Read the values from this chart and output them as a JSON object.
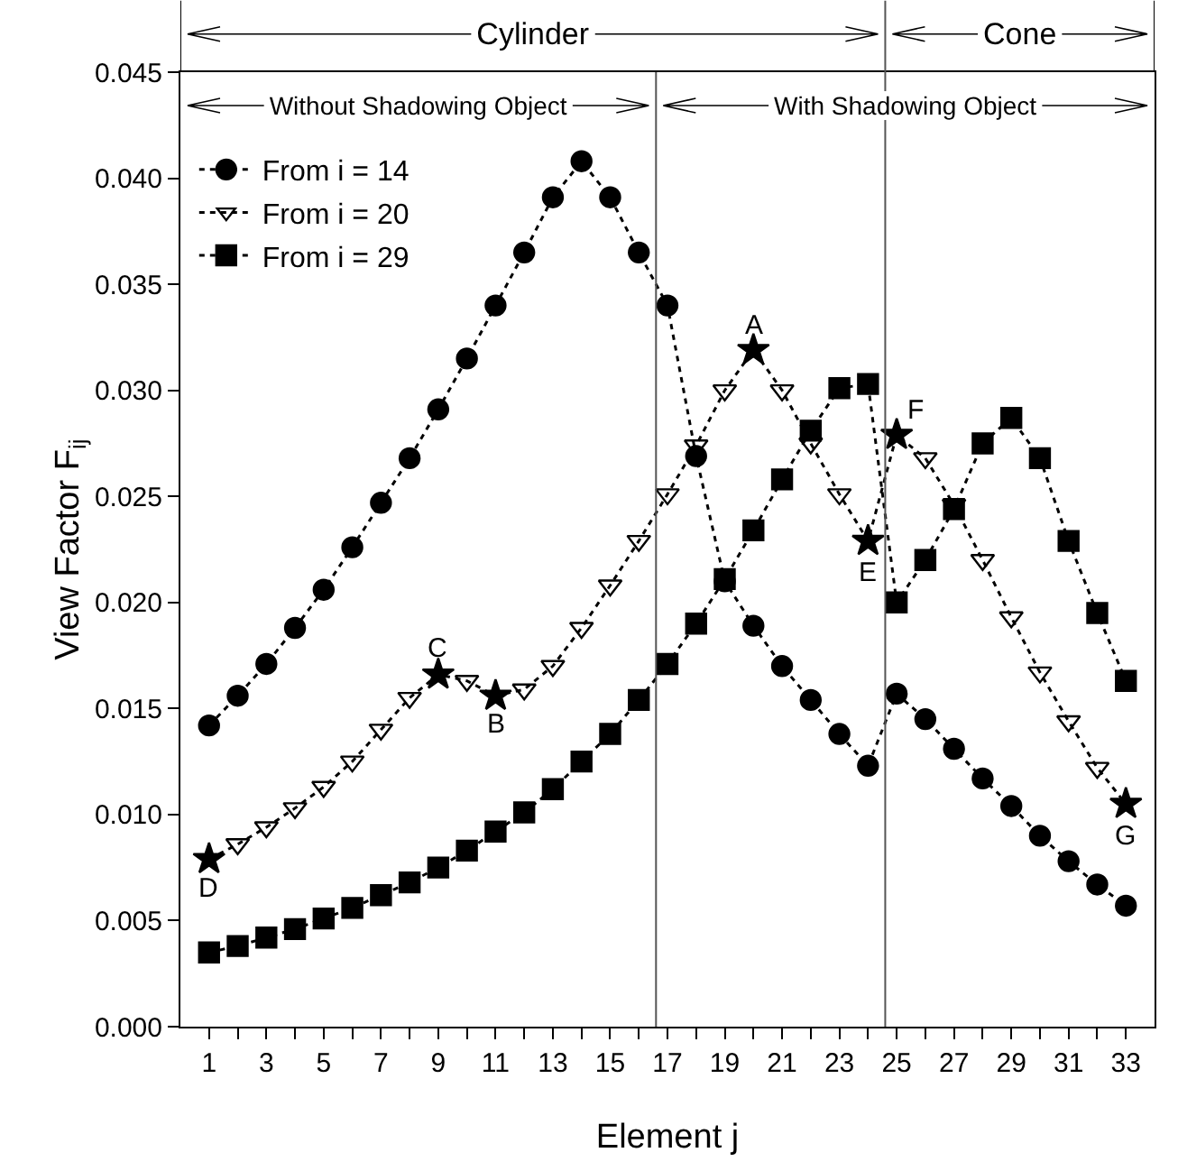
{
  "chart_data": {
    "type": "line",
    "xlabel": "Element j",
    "ylabel": "View Factor F$_{ij}$",
    "x": [
      1,
      2,
      3,
      4,
      5,
      6,
      7,
      8,
      9,
      10,
      11,
      12,
      13,
      14,
      15,
      16,
      17,
      18,
      19,
      20,
      21,
      22,
      23,
      24,
      25,
      26,
      27,
      28,
      29,
      30,
      31,
      32,
      33
    ],
    "series": [
      {
        "name": "From i = 14",
        "color": "#000000",
        "marker": "circle",
        "values": [
          0.0142,
          0.0156,
          0.0171,
          0.0188,
          0.0206,
          0.0226,
          0.0247,
          0.0268,
          0.0291,
          0.0315,
          0.034,
          0.0365,
          0.0391,
          0.0408,
          0.0391,
          0.0365,
          0.034,
          0.0269,
          0.021,
          0.0189,
          0.017,
          0.0154,
          0.0138,
          0.0123,
          0.0157,
          0.0145,
          0.0131,
          0.0117,
          0.0104,
          0.009,
          0.0078,
          0.0067,
          0.0057
        ]
      },
      {
        "name": "From i = 20",
        "color": "#000000",
        "marker": "triangle",
        "values": [
          0.0079,
          0.0086,
          0.0094,
          0.0103,
          0.0113,
          0.0125,
          0.014,
          0.0155,
          0.0166,
          0.0163,
          0.0156,
          0.0159,
          0.017,
          0.0188,
          0.0208,
          0.0229,
          0.0251,
          0.0274,
          0.03,
          0.0319,
          0.03,
          0.0275,
          0.0251,
          0.0229,
          0.0279,
          0.0268,
          0.0246,
          0.022,
          0.0193,
          0.0167,
          0.0144,
          0.0122,
          0.0105
        ]
      },
      {
        "name": "From i = 29",
        "color": "#000000",
        "marker": "square",
        "values": [
          0.0035,
          0.0038,
          0.0042,
          0.0046,
          0.0051,
          0.0056,
          0.0062,
          0.0068,
          0.0075,
          0.0083,
          0.0092,
          0.0101,
          0.0112,
          0.0125,
          0.0138,
          0.0154,
          0.0171,
          0.019,
          0.0211,
          0.0234,
          0.0258,
          0.0281,
          0.0301,
          0.0303,
          0.02,
          0.022,
          0.0244,
          0.0275,
          0.0287,
          0.0268,
          0.0229,
          0.0195,
          0.0163
        ]
      },
      {
        "type": "scatter",
        "color": "#000000",
        "marker": "star",
        "x": [
          1,
          9,
          11,
          20,
          24,
          25,
          33
        ],
        "values": [
          0.0079,
          0.0166,
          0.0156,
          0.0319,
          0.0229,
          0.0279,
          0.0105
        ]
      }
    ],
    "line_style": "dotted",
    "legend": "top left",
    "grid": false,
    "xlim": [
      0,
      34
    ],
    "xticks": [
      1,
      {
        "value": 2,
        "label": null
      },
      3,
      {
        "value": 4,
        "label": null
      },
      5,
      {
        "value": 6,
        "label": null
      },
      7,
      {
        "value": 8,
        "label": null
      },
      9,
      {
        "value": 10,
        "label": null
      },
      11,
      {
        "value": 12,
        "label": null
      },
      13,
      {
        "value": 14,
        "label": null
      },
      15,
      {
        "value": 16,
        "label": null
      },
      17,
      {
        "value": 18,
        "label": null
      },
      19,
      {
        "value": 20,
        "label": null
      },
      21,
      {
        "value": 22,
        "label": null
      },
      23,
      {
        "value": 24,
        "label": null
      },
      25,
      {
        "value": 26,
        "label": null
      },
      27,
      {
        "value": 28,
        "label": null
      },
      29,
      {
        "value": 30,
        "label": null
      },
      31,
      {
        "value": 32,
        "label": null
      },
      33
    ],
    "ylim": [
      0,
      0.045
    ],
    "yticks": [
      {
        "value": 0,
        "label": "0.000"
      },
      {
        "value": 0.005,
        "label": "0.005"
      },
      {
        "value": 0.01,
        "label": "0.010"
      },
      {
        "value": 0.015,
        "label": "0.015"
      },
      {
        "value": 0.02,
        "label": "0.020"
      },
      {
        "value": 0.025,
        "label": "0.025"
      },
      {
        "value": 0.03,
        "label": "0.030"
      },
      {
        "value": 0.035,
        "label": "0.035"
      },
      {
        "value": 0.04,
        "label": "0.040"
      },
      {
        "value": 0.045,
        "label": "0.045"
      }
    ],
    "ref_lines": [
      {
        "axis": "x",
        "value": 16.6,
        "label": null,
        "color": "#555555"
      },
      {
        "axis": "x",
        "value": 24.6,
        "label": null,
        "color": "#555555"
      }
    ],
    "annotations": [
      "Cylinder",
      "Cone",
      "Without Shadowing Object",
      "With Shadowing Object",
      {
        "text": "A",
        "x": 20,
        "y": 0.0319
      },
      {
        "text": "B",
        "x": 11,
        "y": 0.0156
      },
      {
        "text": "C",
        "x": 9,
        "y": 0.0166
      },
      {
        "text": "D",
        "x": 1,
        "y": 0.0079
      },
      {
        "text": "E",
        "x": 24,
        "y": 0.0229
      },
      {
        "text": "F",
        "x": 25,
        "y": 0.0279
      },
      {
        "text": "G",
        "x": 33,
        "y": 0.0105
      }
    ]
  }
}
